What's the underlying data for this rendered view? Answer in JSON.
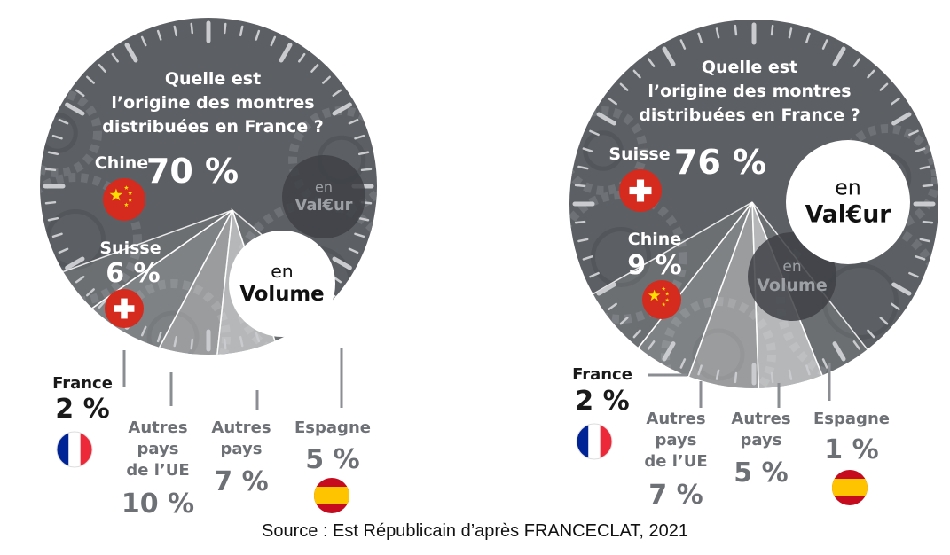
{
  "colors": {
    "dial": "#5c5f63",
    "dial_dark": "#3e4145",
    "white": "#ffffff",
    "text_dark": "#1a1a1a",
    "text_grey": "#6d7075",
    "china_red": "#d52b1e",
    "china_yellow": "#ffde00",
    "swiss_red": "#d52b1e",
    "spain_red": "#c60b1e",
    "spain_yellow": "#ffc400",
    "france_blue": "#002395",
    "france_red": "#ed2939"
  },
  "source": "Source : Est Républicain d’après FRANCECLAT, 2021",
  "chart_data": [
    {
      "type": "pie",
      "title": [
        "Quelle est",
        "l’origine des montres",
        "distribuées en France ?"
      ],
      "badge_active": [
        "en",
        "Volume"
      ],
      "badge_inactive": [
        "en",
        "Val€ur"
      ],
      "unit": "%",
      "slices": [
        {
          "name": "Chine",
          "value": 70,
          "label": "70 %",
          "flag": "china-flag"
        },
        {
          "name": "Suisse",
          "value": 6,
          "label": "6 %",
          "flag": "swiss-flag"
        },
        {
          "name": "France",
          "value": 2,
          "label": "2 %",
          "flag": "france-flag"
        },
        {
          "name_lines": [
            "Autres",
            "pays",
            "de l’UE"
          ],
          "name": "Autres pays de l’UE",
          "value": 10,
          "label": "10 %"
        },
        {
          "name_lines": [
            "Autres",
            "pays"
          ],
          "name": "Autres pays",
          "value": 7,
          "label": "7 %"
        },
        {
          "name": "Espagne",
          "value": 5,
          "label": "5 %",
          "flag": "spain-flag"
        }
      ]
    },
    {
      "type": "pie",
      "title": [
        "Quelle est",
        "l’origine des montres",
        "distribuées en France ?"
      ],
      "badge_active": [
        "en",
        "Val€ur"
      ],
      "badge_inactive": [
        "en",
        "Volume"
      ],
      "unit": "%",
      "slices": [
        {
          "name": "Suisse",
          "value": 76,
          "label": "76 %",
          "flag": "swiss-flag"
        },
        {
          "name": "Chine",
          "value": 9,
          "label": "9 %",
          "flag": "china-flag"
        },
        {
          "name": "France",
          "value": 2,
          "label": "2 %",
          "flag": "france-flag"
        },
        {
          "name_lines": [
            "Autres",
            "pays",
            "de l’UE"
          ],
          "name": "Autres pays de l’UE",
          "value": 7,
          "label": "7 %"
        },
        {
          "name_lines": [
            "Autres",
            "pays"
          ],
          "name": "Autres pays",
          "value": 5,
          "label": "5 %"
        },
        {
          "name": "Espagne",
          "value": 1,
          "label": "1 %",
          "flag": "spain-flag"
        }
      ]
    }
  ]
}
